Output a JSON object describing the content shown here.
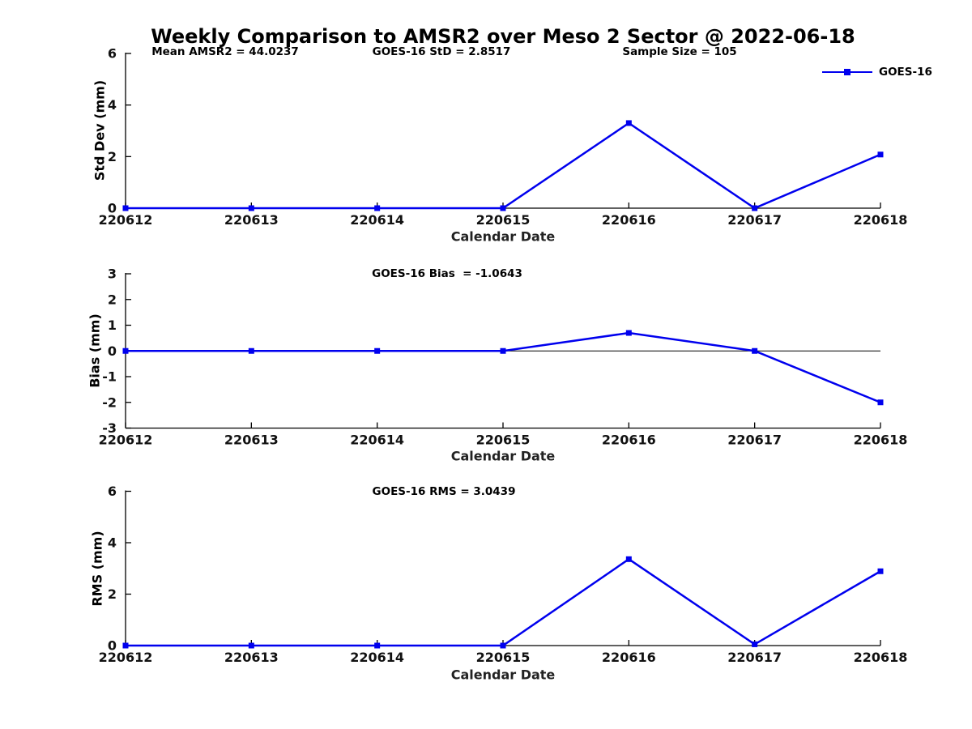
{
  "figure": {
    "title": "Weekly Comparison to AMSR2 over Meso 2 Sector @ 2022-06-18",
    "background_color": "#ffffff",
    "line_color": "#0000EE"
  },
  "chart_data": [
    {
      "type": "line",
      "subplot": "top",
      "ylabel": "Std Dev (mm)",
      "xlabel": "Calendar Date",
      "categories": [
        "220612",
        "220613",
        "220614",
        "220615",
        "220616",
        "220617",
        "220618"
      ],
      "ylim": [
        0,
        6
      ],
      "yticks": [
        0,
        2,
        4,
        6
      ],
      "grid": false,
      "zero_line": false,
      "legend": {
        "visible": true,
        "position": "top-right"
      },
      "annotations": [
        {
          "text": "Mean AMSR2 = 44.0237"
        },
        {
          "text": "GOES-16 StD = 2.8517"
        },
        {
          "text": "Sample Size = 105"
        }
      ],
      "series": [
        {
          "name": "GOES-16",
          "color": "#0000EE",
          "marker": "square",
          "values": [
            0,
            0,
            0,
            0,
            3.3,
            0,
            2.08
          ]
        }
      ]
    },
    {
      "type": "line",
      "subplot": "middle",
      "ylabel": "Bias (mm)",
      "xlabel": "Calendar Date",
      "categories": [
        "220612",
        "220613",
        "220614",
        "220615",
        "220616",
        "220617",
        "220618"
      ],
      "ylim": [
        -3,
        3
      ],
      "yticks": [
        -3,
        -2,
        -1,
        0,
        1,
        2,
        3
      ],
      "grid": false,
      "zero_line": true,
      "legend": {
        "visible": false
      },
      "annotations": [
        {
          "text": "GOES-16 Bias  = -1.0643"
        }
      ],
      "series": [
        {
          "name": "GOES-16",
          "color": "#0000EE",
          "marker": "square",
          "values": [
            0,
            0,
            0,
            0,
            0.7,
            0,
            -2.0
          ]
        }
      ]
    },
    {
      "type": "line",
      "subplot": "bottom",
      "ylabel": "RMS (mm)",
      "xlabel": "Calendar Date",
      "categories": [
        "220612",
        "220613",
        "220614",
        "220615",
        "220616",
        "220617",
        "220618"
      ],
      "ylim": [
        0,
        6
      ],
      "yticks": [
        0,
        2,
        4,
        6
      ],
      "grid": false,
      "zero_line": false,
      "legend": {
        "visible": false
      },
      "annotations": [
        {
          "text": "GOES-16 RMS = 3.0439"
        }
      ],
      "series": [
        {
          "name": "GOES-16",
          "color": "#0000EE",
          "marker": "square",
          "values": [
            0,
            0,
            0,
            0,
            3.36,
            0.05,
            2.89
          ]
        }
      ]
    }
  ]
}
